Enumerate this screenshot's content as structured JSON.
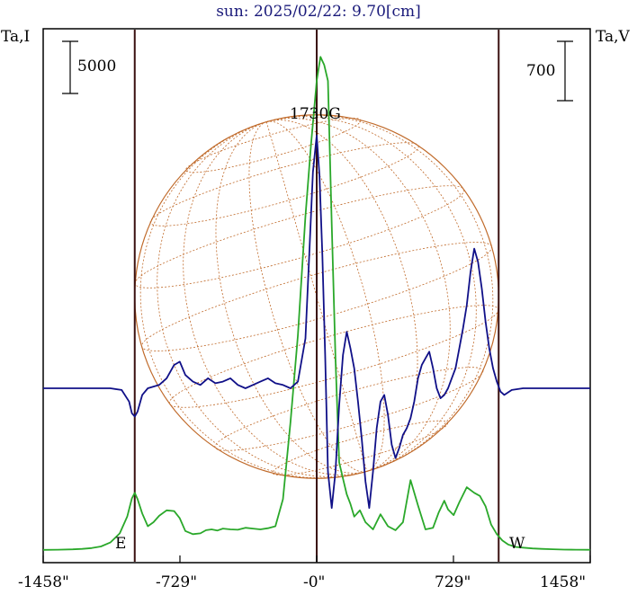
{
  "chart_data": {
    "type": "line",
    "title": "sun: 2025/02/22: 9.70[cm]",
    "xlabel": "",
    "left_axis_label": "Ta,I",
    "right_axis_label": "Ta,V",
    "x_ticks": [
      "-1458\"",
      "-729\"",
      "-0\"",
      "729\"",
      "1458\""
    ],
    "x_tick_values": [
      -1458,
      -729,
      0,
      729,
      1458
    ],
    "xlim": [
      -1458,
      1458
    ],
    "limb_markers": [
      {
        "label": "E",
        "x": -970
      },
      {
        "label": "W",
        "x": 970
      }
    ],
    "center_marker": 0,
    "scale_bars": [
      {
        "label": "5000",
        "side": "left",
        "series": "Ta,I"
      },
      {
        "label": "700",
        "side": "right",
        "series": "Ta,V"
      }
    ],
    "annotation": {
      "text": "1730G",
      "x": 0
    },
    "grid": false,
    "solar_disk": {
      "radius_arcsec": 970,
      "color": "#c06a2a"
    },
    "series": [
      {
        "name": "Ta,I",
        "color": "#2aa82a",
        "baseline": 0,
        "x": [
          -1458,
          -1380,
          -1300,
          -1250,
          -1200,
          -1150,
          -1100,
          -1050,
          -1010,
          -985,
          -970,
          -955,
          -930,
          -900,
          -870,
          -840,
          -800,
          -760,
          -730,
          -700,
          -660,
          -620,
          -590,
          -560,
          -530,
          -500,
          -460,
          -420,
          -380,
          -340,
          -300,
          -260,
          -220,
          -180,
          -140,
          -100,
          -60,
          -30,
          0,
          20,
          40,
          60,
          80,
          100,
          120,
          140,
          160,
          180,
          200,
          230,
          260,
          300,
          340,
          380,
          420,
          460,
          500,
          540,
          580,
          620,
          650,
          680,
          700,
          730,
          760,
          800,
          840,
          870,
          900,
          930,
          960,
          990,
          1020,
          1060,
          1100,
          1150,
          1200,
          1260,
          1320,
          1380,
          1458
        ],
        "values": [
          2,
          4,
          9,
          15,
          25,
          45,
          95,
          210,
          420,
          650,
          720,
          640,
          460,
          300,
          350,
          430,
          500,
          490,
          400,
          240,
          200,
          210,
          250,
          260,
          245,
          270,
          260,
          255,
          280,
          270,
          260,
          275,
          300,
          640,
          1600,
          2700,
          4200,
          5100,
          5900,
          6200,
          6100,
          5900,
          4100,
          2400,
          1100,
          900,
          700,
          580,
          420,
          500,
          350,
          260,
          450,
          300,
          250,
          350,
          880,
          560,
          260,
          280,
          470,
          620,
          510,
          440,
          600,
          790,
          720,
          680,
          550,
          320,
          200,
          120,
          70,
          40,
          30,
          20,
          15,
          10,
          6,
          4,
          3
        ]
      },
      {
        "name": "Ta,V",
        "color": "#101088",
        "baseline": 0,
        "x": [
          -1458,
          -1300,
          -1200,
          -1100,
          -1040,
          -1000,
          -985,
          -970,
          -955,
          -930,
          -900,
          -870,
          -840,
          -800,
          -760,
          -730,
          -700,
          -660,
          -620,
          -580,
          -540,
          -500,
          -460,
          -420,
          -380,
          -340,
          -300,
          -260,
          -220,
          -180,
          -140,
          -100,
          -60,
          -40,
          -20,
          0,
          15,
          30,
          45,
          60,
          80,
          100,
          120,
          140,
          160,
          180,
          200,
          220,
          240,
          260,
          280,
          300,
          320,
          340,
          360,
          380,
          400,
          420,
          440,
          460,
          480,
          500,
          520,
          540,
          560,
          580,
          600,
          620,
          640,
          660,
          680,
          700,
          720,
          740,
          760,
          780,
          800,
          820,
          840,
          860,
          880,
          900,
          920,
          940,
          960,
          980,
          1000,
          1040,
          1100,
          1200,
          1300,
          1458
        ],
        "values": [
          0,
          0,
          0,
          0,
          -5,
          -40,
          -75,
          -85,
          -70,
          -20,
          0,
          5,
          10,
          30,
          70,
          80,
          40,
          20,
          10,
          30,
          15,
          20,
          30,
          10,
          0,
          10,
          20,
          30,
          15,
          10,
          0,
          20,
          150,
          400,
          650,
          760,
          640,
          400,
          100,
          -250,
          -360,
          -250,
          -50,
          100,
          170,
          120,
          60,
          -40,
          -150,
          -280,
          -360,
          -250,
          -120,
          -40,
          -20,
          -80,
          -170,
          -210,
          -180,
          -140,
          -120,
          -90,
          -40,
          30,
          70,
          90,
          110,
          60,
          0,
          -30,
          -20,
          0,
          30,
          60,
          120,
          180,
          250,
          350,
          420,
          380,
          300,
          200,
          120,
          60,
          20,
          -10,
          -20,
          -5,
          0,
          0,
          0,
          0
        ]
      }
    ]
  }
}
